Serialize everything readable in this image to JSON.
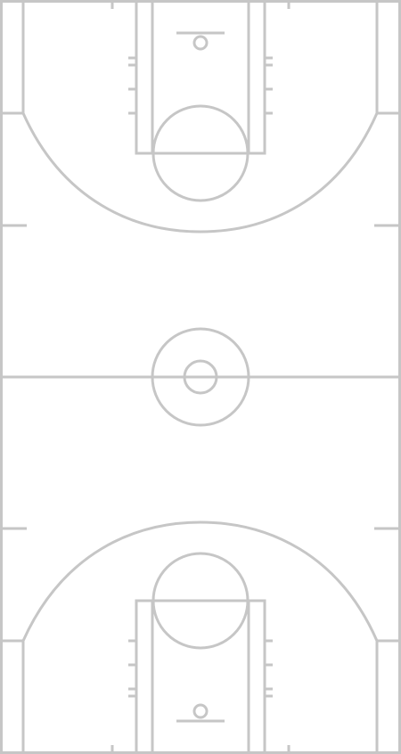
{
  "court": {
    "kind": "basketball-court-full",
    "line_color": "#c6c6c6",
    "background": "#ffffff",
    "orientation": "vertical"
  }
}
